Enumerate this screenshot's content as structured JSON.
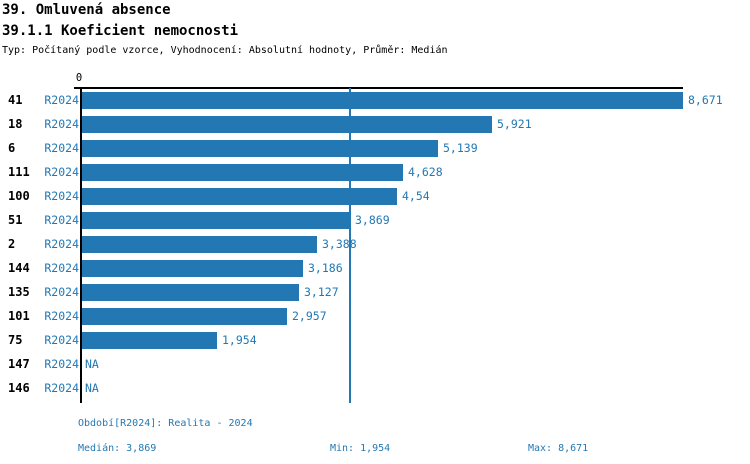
{
  "header": {
    "title1": "39. Omluvená absence",
    "title2": "39.1.1 Koeficient nemocnosti",
    "subtitle": "Typ: Počítaný podle vzorce, Vyhodnocení: Absolutní hodnoty, Průměr: Medián"
  },
  "chart_data": {
    "type": "bar",
    "orientation": "horizontal",
    "title": "39.1.1 Koeficient nemocnosti",
    "axis_zero_label": "0",
    "xlim": [
      0,
      8.671
    ],
    "grid": false,
    "legend": false,
    "categories": [
      "41",
      "18",
      "6",
      "111",
      "100",
      "51",
      "2",
      "144",
      "135",
      "101",
      "75",
      "147",
      "146"
    ],
    "rows": [
      {
        "group": "41",
        "period": "R2024",
        "value": 8.671,
        "label": "8,671"
      },
      {
        "group": "18",
        "period": "R2024",
        "value": 5.921,
        "label": "5,921"
      },
      {
        "group": "6",
        "period": "R2024",
        "value": 5.139,
        "label": "5,139"
      },
      {
        "group": "111",
        "period": "R2024",
        "value": 4.628,
        "label": "4,628"
      },
      {
        "group": "100",
        "period": "R2024",
        "value": 4.54,
        "label": "4,54"
      },
      {
        "group": "51",
        "period": "R2024",
        "value": 3.869,
        "label": "3,869"
      },
      {
        "group": "2",
        "period": "R2024",
        "value": 3.388,
        "label": "3,388"
      },
      {
        "group": "144",
        "period": "R2024",
        "value": 3.186,
        "label": "3,186"
      },
      {
        "group": "135",
        "period": "R2024",
        "value": 3.127,
        "label": "3,127"
      },
      {
        "group": "101",
        "period": "R2024",
        "value": 2.957,
        "label": "2,957"
      },
      {
        "group": "75",
        "period": "R2024",
        "value": 1.954,
        "label": "1,954"
      },
      {
        "group": "147",
        "period": "R2024",
        "value": null,
        "label": "NA"
      },
      {
        "group": "146",
        "period": "R2024",
        "value": null,
        "label": "NA"
      }
    ],
    "median_value": 3.869,
    "colors": {
      "bar": "#2378b4",
      "blue_text": "#2378b4",
      "black_text": "#000000",
      "axis": "#000000"
    }
  },
  "footer": {
    "period_line": "Období[R2024]: Realita - 2024",
    "median": "Medián: 3,869",
    "min": "Min: 1,954",
    "max": "Max: 8,671"
  }
}
